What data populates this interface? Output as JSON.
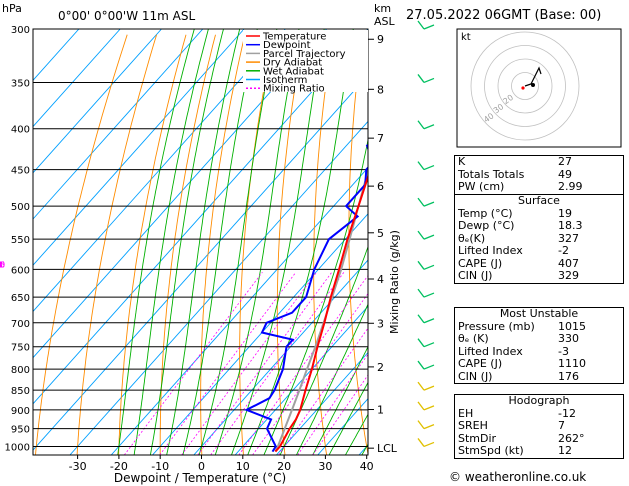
{
  "header": {
    "hpa": "hPa",
    "location": "0°00' 0°00'W 11m ASL",
    "km": "km",
    "asl": "ASL",
    "date": "27.05.2022 06GMT (Base: 00)"
  },
  "legend": [
    {
      "label": "Temperature",
      "color": "#ff0000"
    },
    {
      "label": "Dewpoint",
      "color": "#0000ff"
    },
    {
      "label": "Parcel Trajectory",
      "color": "#a0a0a0"
    },
    {
      "label": "Dry Adiabat",
      "color": "#ff8c00"
    },
    {
      "label": "Wet Adiabat",
      "color": "#00b000"
    },
    {
      "label": "Isotherm",
      "color": "#00a0ff"
    },
    {
      "label": "Mixing Ratio",
      "color": "#ff00ff"
    }
  ],
  "chart_data": {
    "type": "line",
    "xlabel": "Dewpoint / Temperature (°C)",
    "ylabel": "Mixing Ratio (g/kg)",
    "x_ticks": [
      -30,
      -20,
      -10,
      0,
      10,
      20,
      30,
      40
    ],
    "pressure_ticks": [
      300,
      350,
      400,
      450,
      500,
      550,
      600,
      650,
      700,
      750,
      800,
      850,
      900,
      950,
      1000
    ],
    "km_ticks": [
      {
        "label": "9",
        "p": 309
      },
      {
        "label": "8",
        "p": 357
      },
      {
        "label": "7",
        "p": 411
      },
      {
        "label": "6",
        "p": 472
      },
      {
        "label": "5",
        "p": 540
      },
      {
        "label": "4",
        "p": 617
      },
      {
        "label": "3",
        "p": 701
      },
      {
        "label": "2",
        "p": 795
      },
      {
        "label": "1",
        "p": 899
      },
      {
        "label": "LCL",
        "p": 1005
      }
    ],
    "mixing_ratio_labels": [
      "1",
      "2",
      "3",
      "4",
      "5",
      "8",
      "10",
      "15",
      "20",
      "25"
    ],
    "series": [
      {
        "name": "Temperature",
        "color": "#ff0000",
        "points": [
          [
            1015,
            19
          ],
          [
            1000,
            19
          ],
          [
            950,
            17.5
          ],
          [
            925,
            17
          ],
          [
            900,
            16
          ],
          [
            850,
            13
          ],
          [
            800,
            10
          ],
          [
            750,
            6.5
          ],
          [
            700,
            3
          ],
          [
            650,
            -1
          ],
          [
            600,
            -5
          ],
          [
            550,
            -9.5
          ],
          [
            500,
            -14
          ],
          [
            450,
            -19
          ],
          [
            400,
            -25
          ],
          [
            350,
            -32
          ],
          [
            300,
            -40
          ]
        ]
      },
      {
        "name": "Dewpoint",
        "color": "#0000ff",
        "points": [
          [
            1015,
            18.3
          ],
          [
            1000,
            18
          ],
          [
            950,
            12
          ],
          [
            925,
            11
          ],
          [
            900,
            3
          ],
          [
            870,
            6
          ],
          [
            850,
            5.5
          ],
          [
            800,
            3
          ],
          [
            750,
            -1
          ],
          [
            735,
            -1
          ],
          [
            720,
            -10
          ],
          [
            700,
            -11
          ],
          [
            680,
            -7
          ],
          [
            650,
            -7
          ],
          [
            600,
            -11
          ],
          [
            550,
            -14
          ],
          [
            515,
            -12
          ],
          [
            500,
            -17
          ],
          [
            470,
            -17
          ],
          [
            450,
            -20
          ],
          [
            440,
            -20
          ],
          [
            420,
            -25
          ],
          [
            400,
            -24
          ],
          [
            350,
            -37
          ],
          [
            320,
            -48
          ],
          [
            310,
            -40
          ],
          [
            300,
            -42
          ]
        ]
      },
      {
        "name": "Parcel Trajectory",
        "color": "#a0a0a0",
        "points": [
          [
            1015,
            19
          ],
          [
            1000,
            18.5
          ],
          [
            950,
            16.3
          ],
          [
            900,
            14
          ],
          [
            850,
            11.5
          ],
          [
            800,
            8.8
          ],
          [
            750,
            6
          ],
          [
            700,
            2.8
          ],
          [
            650,
            -0.7
          ],
          [
            600,
            -4.5
          ],
          [
            550,
            -9
          ],
          [
            500,
            -14
          ],
          [
            450,
            -19.5
          ],
          [
            400,
            -26
          ],
          [
            350,
            -33
          ],
          [
            300,
            -42
          ]
        ]
      }
    ],
    "hodograph": {
      "label": "kt",
      "ring_labels": [
        "40",
        "30",
        "20"
      ]
    }
  },
  "indices": [
    {
      "name": "K",
      "value": "27"
    },
    {
      "name": "Totals Totals",
      "value": "49"
    },
    {
      "name": "PW (cm)",
      "value": "2.99"
    }
  ],
  "surface": {
    "title": "Surface",
    "rows": [
      {
        "name": "Temp (°C)",
        "value": "19"
      },
      {
        "name": "Dewp (°C)",
        "value": "18.3"
      },
      {
        "name": "θₑ(K)",
        "value": "327"
      },
      {
        "name": "Lifted Index",
        "value": "-2"
      },
      {
        "name": "CAPE (J)",
        "value": "407"
      },
      {
        "name": "CIN (J)",
        "value": "329"
      }
    ]
  },
  "most_unstable": {
    "title": "Most Unstable",
    "rows": [
      {
        "name": "Pressure (mb)",
        "value": "1015"
      },
      {
        "name": "θₑ (K)",
        "value": "330"
      },
      {
        "name": "Lifted Index",
        "value": "-3"
      },
      {
        "name": "CAPE (J)",
        "value": "1110"
      },
      {
        "name": "CIN (J)",
        "value": "176"
      }
    ]
  },
  "hodograph_table": {
    "title": "Hodograph",
    "rows": [
      {
        "name": "EH",
        "value": "-12"
      },
      {
        "name": "SREH",
        "value": "7"
      },
      {
        "name": "StmDir",
        "value": "262°"
      },
      {
        "name": "StmSpd (kt)",
        "value": "12"
      }
    ]
  },
  "footer": "© weatheronline.co.uk"
}
